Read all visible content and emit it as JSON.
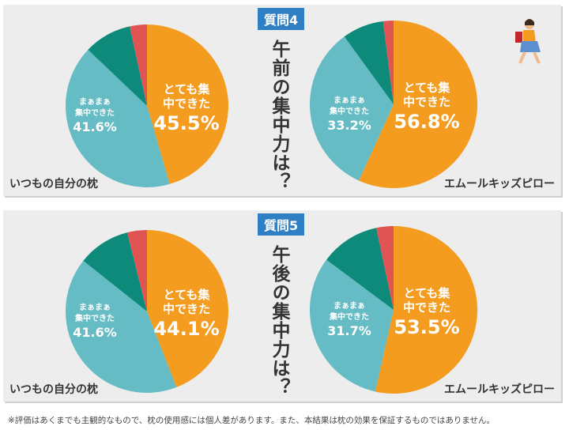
{
  "colors": {
    "very": "#f39c1f",
    "somewhat": "#66bcc4",
    "dark": "#0e8a7a",
    "red": "#e05454"
  },
  "chart_data": [
    {
      "type": "pie",
      "question": "質問4",
      "title": "午前の集中力は？",
      "pies": [
        {
          "caption": "いつもの自分の枕",
          "values": [
            45.5,
            41.6,
            9.5,
            3.4
          ],
          "labels": [
            {
              "text": "とても集中できた",
              "value": "45.5%"
            },
            {
              "text": "まぁまぁ集中できた",
              "value": "41.6%"
            }
          ]
        },
        {
          "caption": "エムールキッズピロー",
          "values": [
            56.8,
            33.2,
            8.0,
            2.0
          ],
          "labels": [
            {
              "text": "とても集中できた",
              "value": "56.8%"
            },
            {
              "text": "まぁまぁ集中できた",
              "value": "33.2%"
            }
          ]
        }
      ]
    },
    {
      "type": "pie",
      "question": "質問5",
      "title": "午後の集中力は？",
      "pies": [
        {
          "caption": "いつもの自分の枕",
          "values": [
            44.1,
            41.6,
            10.4,
            3.9
          ],
          "labels": [
            {
              "text": "とても集中できた",
              "value": "44.1%"
            },
            {
              "text": "まぁまぁ集中できた",
              "value": "41.6%"
            }
          ]
        },
        {
          "caption": "エムールキッズピロー",
          "values": [
            53.5,
            31.7,
            11.5,
            3.3
          ],
          "labels": [
            {
              "text": "とても集中できた",
              "value": "53.5%"
            },
            {
              "text": "まぁまぁ集中できた",
              "value": "31.7%"
            }
          ]
        }
      ]
    }
  ],
  "footnote": "※評価はあくまでも主観的なもので、枕の使用感には個人差があります。また、本結果は枕の効果を保証するものではありません。"
}
